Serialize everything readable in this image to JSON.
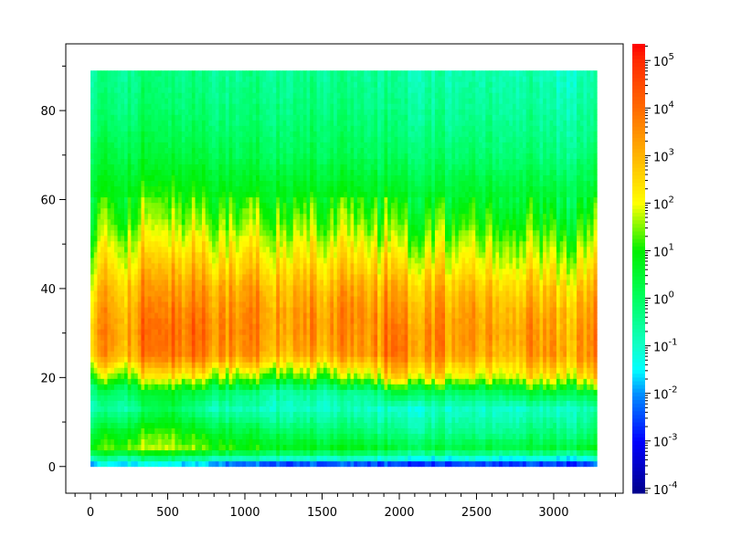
{
  "chart_data": {
    "type": "heatmap",
    "title": "",
    "xlabel": "",
    "ylabel": "",
    "xlim": [
      -160,
      3450
    ],
    "ylim": [
      -6,
      95
    ],
    "x_ticks": [
      0,
      500,
      1000,
      1500,
      2000,
      2500,
      3000
    ],
    "y_ticks": [
      0,
      20,
      40,
      60,
      80
    ],
    "data_x_range": [
      0,
      3280
    ],
    "data_y_range": [
      0,
      89
    ],
    "grid": false,
    "colorbar": {
      "scale": "log",
      "range_log10": [
        -4.1,
        5.35
      ],
      "colormap": "jet",
      "tick_labels": [
        {
          "base": "10",
          "exp": "5"
        },
        {
          "base": "10",
          "exp": "4"
        },
        {
          "base": "10",
          "exp": "3"
        },
        {
          "base": "10",
          "exp": "2"
        },
        {
          "base": "10",
          "exp": "1"
        },
        {
          "base": "10",
          "exp": "0"
        },
        {
          "base": "10",
          "exp": "-1"
        },
        {
          "base": "10",
          "exp": "-2"
        },
        {
          "base": "10",
          "exp": "-3"
        },
        {
          "base": "10",
          "exp": "-4"
        }
      ],
      "tick_values_log10": [
        5,
        4,
        3,
        2,
        1,
        0,
        -1,
        -2,
        -3,
        -4
      ],
      "colors": {
        "-4.1": "#00008b",
        "-3": "#0000ff",
        "-2": "#0090ff",
        "-1.5": "#00ffff",
        "-1": "#10ffc8",
        "0": "#00ff60",
        "1": "#00f000",
        "2": "#ffff00",
        "3": "#ffb400",
        "4": "#ff6a00",
        "5": "#ff2a00",
        "5.35": "#ff0000"
      }
    },
    "grid_times": [
      0,
      250,
      500,
      750,
      1000,
      1250,
      1500,
      1750,
      2000,
      2250,
      2500,
      2750,
      3000,
      3250
    ],
    "grid_freqs": [
      0.5,
      1.5,
      4,
      8,
      13,
      17,
      20,
      25,
      30,
      35,
      40,
      45,
      50,
      55,
      62,
      70,
      80,
      88
    ],
    "log10_values": [
      [
        -1.5,
        -1.5,
        -1.6,
        -1.8,
        -2.5,
        -2.6,
        -2.6,
        -2.6,
        -2.7,
        -2.7,
        -2.6,
        -2.5,
        -2.6,
        -2.6
      ],
      [
        -0.8,
        -0.8,
        -0.6,
        -1.0,
        -1.2,
        -1.3,
        -1.3,
        -1.4,
        -1.5,
        -1.6,
        -1.5,
        -1.6,
        -1.5,
        -1.5
      ],
      [
        1.2,
        1.5,
        1.8,
        1.3,
        0.9,
        0.8,
        0.8,
        0.7,
        0.3,
        0.4,
        0.4,
        0.5,
        0.5,
        0.6
      ],
      [
        0.5,
        0.8,
        1.2,
        0.6,
        0.2,
        0.0,
        0.0,
        -0.2,
        -0.5,
        -0.4,
        -0.5,
        -0.3,
        -0.2,
        -0.3
      ],
      [
        -0.6,
        -0.5,
        0.3,
        -0.7,
        -0.9,
        -1.0,
        -1.0,
        -1.0,
        -1.1,
        -1.0,
        -1.0,
        -0.9,
        -0.9,
        -0.8
      ],
      [
        0.0,
        0.2,
        0.8,
        0.2,
        -0.3,
        -0.6,
        -0.5,
        -0.6,
        0.5,
        0.2,
        0.0,
        0.5,
        0.6,
        0.5
      ],
      [
        1.5,
        1.6,
        2.2,
        1.8,
        1.2,
        1.0,
        1.2,
        1.2,
        2.5,
        2.2,
        1.8,
        2.2,
        2.4,
        2.3
      ],
      [
        3.2,
        3.3,
        3.8,
        3.6,
        3.2,
        2.9,
        3.1,
        3.0,
        3.8,
        3.4,
        3.1,
        3.3,
        3.5,
        3.4
      ],
      [
        3.4,
        3.5,
        3.9,
        3.8,
        3.4,
        3.2,
        3.5,
        3.2,
        3.7,
        3.5,
        3.3,
        3.5,
        3.4,
        3.4
      ],
      [
        3.2,
        3.3,
        3.7,
        3.6,
        3.3,
        3.2,
        3.4,
        3.2,
        3.4,
        3.3,
        3.2,
        3.3,
        3.2,
        3.2
      ],
      [
        2.8,
        3.0,
        3.3,
        3.2,
        3.0,
        2.9,
        3.0,
        2.9,
        3.0,
        2.9,
        2.8,
        2.9,
        2.8,
        2.8
      ],
      [
        2.3,
        2.5,
        2.8,
        2.6,
        2.4,
        2.4,
        2.5,
        2.3,
        2.4,
        2.3,
        2.2,
        2.3,
        2.2,
        2.2
      ],
      [
        1.8,
        2.0,
        2.2,
        2.1,
        1.9,
        1.9,
        2.0,
        1.8,
        1.8,
        1.7,
        1.7,
        1.8,
        1.6,
        1.6
      ],
      [
        1.3,
        1.4,
        1.6,
        1.5,
        1.3,
        1.3,
        1.4,
        1.2,
        1.2,
        1.1,
        1.1,
        1.2,
        1.0,
        1.0
      ],
      [
        0.8,
        0.9,
        1.0,
        0.9,
        0.7,
        0.7,
        0.8,
        0.6,
        0.6,
        0.5,
        0.5,
        0.6,
        0.4,
        0.4
      ],
      [
        0.3,
        0.4,
        0.4,
        0.3,
        0.1,
        0.1,
        0.2,
        0.0,
        0.0,
        -0.1,
        -0.1,
        0.0,
        -0.2,
        -0.2
      ],
      [
        -0.2,
        -0.1,
        -0.1,
        -0.2,
        -0.3,
        -0.3,
        -0.2,
        -0.4,
        -0.4,
        -0.5,
        -0.5,
        -0.4,
        -0.6,
        -0.6
      ],
      [
        -0.4,
        -0.3,
        -0.3,
        -0.4,
        -0.5,
        -0.5,
        -0.4,
        -0.6,
        -0.6,
        -0.7,
        -0.7,
        -0.6,
        -0.8,
        -0.8
      ]
    ]
  }
}
